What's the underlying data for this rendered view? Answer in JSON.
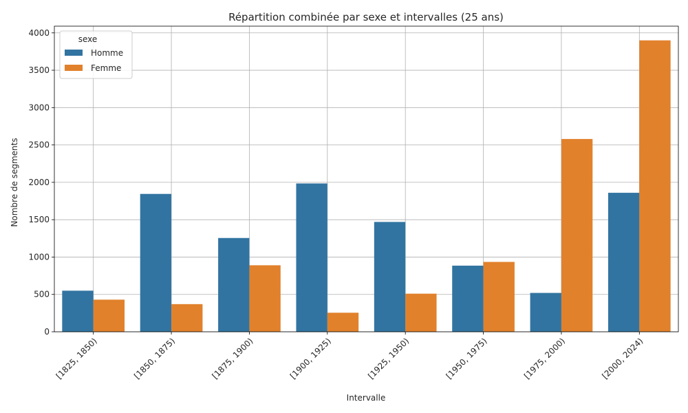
{
  "chart_data": {
    "type": "bar",
    "title": "Répartition combinée par sexe et intervalles (25 ans)",
    "xlabel": "Intervalle",
    "ylabel": "Nombre de segments",
    "categories": [
      "[1825, 1850)",
      "[1850, 1875)",
      "[1875, 1900)",
      "[1900, 1925)",
      "[1925, 1950)",
      "[1950, 1975)",
      "[1975, 2000)",
      "[2000, 2024)"
    ],
    "series": [
      {
        "name": "Homme",
        "color": "#3274a1",
        "values": [
          550,
          1845,
          1255,
          1985,
          1470,
          885,
          520,
          1860
        ]
      },
      {
        "name": "Femme",
        "color": "#e1812c",
        "values": [
          430,
          370,
          890,
          255,
          510,
          935,
          2580,
          3900
        ]
      }
    ],
    "ylim": [
      0,
      4090
    ],
    "yticks": [
      0,
      500,
      1000,
      1500,
      2000,
      2500,
      3000,
      3500,
      4000
    ],
    "grid": true,
    "legend": {
      "title": "sexe",
      "position": "top-left"
    }
  }
}
